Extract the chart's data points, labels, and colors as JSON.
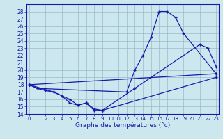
{
  "xlabel": "Graphe des températures (°c)",
  "bg_color": "#cce8ee",
  "line_color": "#1a1aaa",
  "grid_color": "#99bbcc",
  "ylim_min": 14,
  "ylim_max": 29,
  "xlim_min": 0,
  "xlim_max": 23,
  "line1_x": [
    0,
    1,
    12,
    13,
    14,
    15,
    16,
    17,
    18,
    19,
    23
  ],
  "line1_y": [
    18.0,
    17.5,
    17.0,
    20.0,
    22.0,
    24.5,
    28.0,
    28.0,
    27.2,
    25.0,
    19.5
  ],
  "line2_x": [
    0,
    3,
    4,
    5,
    6,
    7,
    8,
    9,
    13,
    21,
    22,
    23
  ],
  "line2_y": [
    18.0,
    17.0,
    16.5,
    15.5,
    15.2,
    15.5,
    14.5,
    14.5,
    17.5,
    23.5,
    23.0,
    20.5
  ],
  "line3_x": [
    0,
    1,
    2,
    3,
    4,
    5,
    6,
    7,
    8,
    9,
    23
  ],
  "line3_y": [
    18.0,
    17.5,
    17.2,
    17.0,
    16.5,
    16.0,
    15.2,
    15.5,
    14.7,
    14.5,
    19.0
  ],
  "line4_x": [
    0,
    23
  ],
  "line4_y": [
    18.0,
    19.5
  ],
  "xlabel_fontsize": 6.5,
  "tick_fontsize": 5.0,
  "ytick_fontsize": 5.5
}
